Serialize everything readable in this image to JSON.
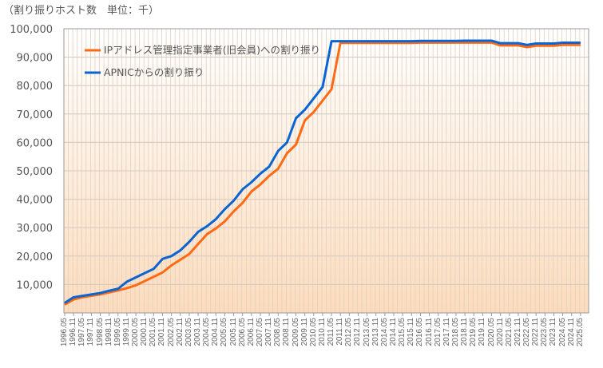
{
  "chart_data": {
    "type": "line",
    "title": "（割り振りホスト数　単位：千）",
    "xlabel": "",
    "ylabel": "",
    "ylim": [
      0,
      100000
    ],
    "yticks": [
      "10,000",
      "20,000",
      "30,000",
      "40,000",
      "50,000",
      "60,000",
      "70,000",
      "80,000",
      "90,000",
      "100,000"
    ],
    "grid": true,
    "legend_position": "top-left",
    "categories": [
      "1996.05",
      "1996.11",
      "1997.05",
      "1997.11",
      "1998.05",
      "1998.11",
      "1999.05",
      "1999.11",
      "2000.05",
      "2000.11",
      "2001.05",
      "2001.11",
      "2002.05",
      "2002.11",
      "2003.05",
      "2003.11",
      "2004.05",
      "2004.11",
      "2005.05",
      "2005.11",
      "2006.05",
      "2006.11",
      "2007.05",
      "2007.11",
      "2008.05",
      "2008.11",
      "2009.05",
      "2009.11",
      "2010.05",
      "2010.11",
      "2011.05",
      "2011.11",
      "2012.05",
      "2012.11",
      "2013.05",
      "2013.11",
      "2014.05",
      "2014.11",
      "2015.05",
      "2015.11",
      "2016.05",
      "2016.11",
      "2017.05",
      "2017.11",
      "2018.05",
      "2018.11",
      "2019.05",
      "2019.11",
      "2020.05",
      "2020.11",
      "2021.05",
      "2021.11",
      "2022.05",
      "2022.11",
      "2023.05",
      "2023.11",
      "2024.05",
      "2024.11",
      "2025.05"
    ],
    "series": [
      {
        "name": "IPアドレス管理指定事業者(旧会員)への割り振り",
        "color": "#ff6a13",
        "values": [
          3200,
          5000,
          5800,
          6300,
          6800,
          7500,
          8200,
          9000,
          10000,
          11500,
          13000,
          14500,
          17000,
          19000,
          21000,
          24500,
          28000,
          30000,
          32500,
          36000,
          39000,
          43000,
          45500,
          48500,
          51000,
          56500,
          59500,
          68000,
          71000,
          75000,
          79000,
          95300,
          95300,
          95300,
          95300,
          95300,
          95300,
          95300,
          95300,
          95300,
          95400,
          95400,
          95400,
          95400,
          95400,
          95400,
          95400,
          95400,
          95400,
          94400,
          94400,
          94400,
          93800,
          94300,
          94300,
          94300,
          94600,
          94600,
          94600
        ]
      },
      {
        "name": "APNICからの割り振り",
        "color": "#0a64d2",
        "values": [
          3500,
          5500,
          6000,
          6500,
          7000,
          7800,
          8500,
          11000,
          12500,
          14000,
          15500,
          19000,
          20000,
          22000,
          25000,
          28500,
          30500,
          33000,
          36500,
          39500,
          43500,
          46000,
          49000,
          51500,
          57000,
          60000,
          68500,
          71500,
          75500,
          79500,
          95600,
          95600,
          95600,
          95600,
          95600,
          95600,
          95600,
          95600,
          95600,
          95600,
          95700,
          95700,
          95700,
          95700,
          95700,
          95800,
          95800,
          95800,
          95800,
          94900,
          94900,
          94900,
          94300,
          94800,
          94800,
          94800,
          95100,
          95100,
          95100
        ]
      }
    ]
  }
}
